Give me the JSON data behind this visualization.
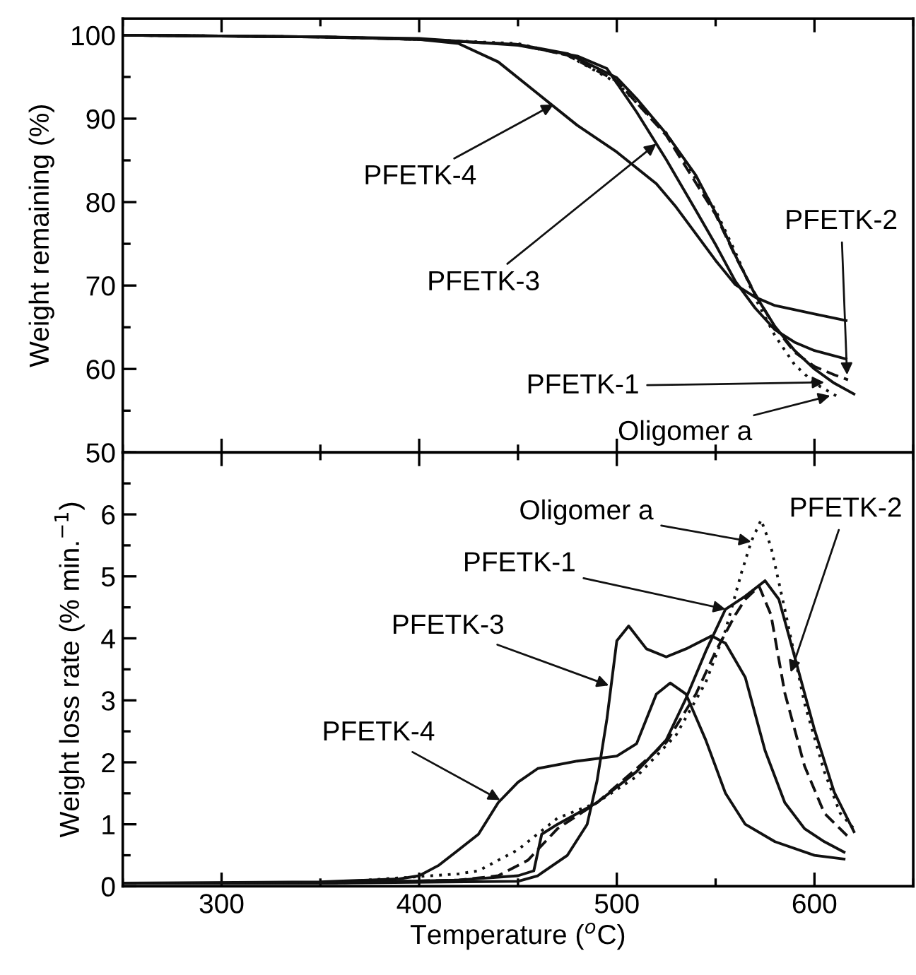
{
  "chart_data": [
    {
      "type": "line",
      "ylabel": "Weight remaining (%)",
      "xlim": [
        250,
        650
      ],
      "xticks": [
        300,
        400,
        500,
        600
      ],
      "ylim": [
        50,
        102
      ],
      "yticks": [
        50,
        60,
        70,
        80,
        90,
        100
      ],
      "tick_labels": "y",
      "grid": false,
      "series": [
        {
          "color": "#111111",
          "line_style": "solid",
          "x": [
            250,
            350,
            400,
            420,
            440,
            460,
            480,
            500,
            520,
            530,
            540,
            550,
            560,
            570,
            580,
            600,
            616
          ],
          "values": [
            100,
            99.8,
            99.5,
            99.0,
            96.8,
            93.0,
            89.2,
            86.0,
            82.2,
            79.4,
            76.2,
            73.0,
            70.1,
            68.6,
            67.6,
            66.6,
            65.8
          ]
        },
        {
          "color": "#111111",
          "line_style": "solid",
          "x": [
            250,
            350,
            400,
            450,
            480,
            495,
            510,
            525,
            540,
            550,
            560,
            570,
            580,
            590,
            600,
            616
          ],
          "values": [
            100,
            99.8,
            99.6,
            98.8,
            97.5,
            96.0,
            90.8,
            85.1,
            79.0,
            74.9,
            70.5,
            67.3,
            64.7,
            63.2,
            62.2,
            61.2
          ]
        },
        {
          "color": "#111111",
          "line_style": "solid",
          "x": [
            250,
            350,
            400,
            450,
            475,
            500,
            510,
            525,
            540,
            550,
            560,
            570,
            580,
            590,
            600,
            610,
            620
          ],
          "values": [
            100,
            99.8,
            99.5,
            98.9,
            97.8,
            94.9,
            92.4,
            88.2,
            83.2,
            78.7,
            73.6,
            68.9,
            65.1,
            62.2,
            60.0,
            58.3,
            57.0
          ]
        },
        {
          "color": "#111111",
          "line_style": "dashed",
          "x": [
            250,
            350,
            400,
            450,
            475,
            500,
            525,
            550,
            560,
            570,
            580,
            590,
            600,
            610,
            617
          ],
          "values": [
            100,
            99.8,
            99.5,
            98.9,
            97.6,
            94.5,
            88.0,
            78.5,
            73.5,
            69.0,
            65.0,
            62.0,
            60.3,
            59.3,
            58.7
          ]
        },
        {
          "color": "#111111",
          "line_style": "dotted",
          "x": [
            250,
            350,
            400,
            450,
            475,
            500,
            525,
            550,
            560,
            570,
            580,
            590,
            600,
            613
          ],
          "values": [
            100,
            99.8,
            99.5,
            99.0,
            97.6,
            94.3,
            88.3,
            79.0,
            74.0,
            68.5,
            64.0,
            60.5,
            58.3,
            56.5
          ]
        }
      ],
      "annotations": [
        {
          "text": "PFETK-4",
          "x": 468,
          "y": 91.7
        },
        {
          "text": "PFETK-3",
          "x": 520,
          "y": 87.0
        },
        {
          "text": "PFETK-2",
          "x": 616.5,
          "y": 59.3
        },
        {
          "text": "PFETK-1",
          "x": 605,
          "y": 58.4
        },
        {
          "text": "Oligomer a",
          "x": 608,
          "y": 56.8
        }
      ]
    },
    {
      "type": "line",
      "xlabel": "Temperature ($^{o}$C)",
      "ylabel": "Weight loss rate (% min.$^{−1}$)",
      "xlim": [
        250,
        650
      ],
      "xticks": [
        300,
        400,
        500,
        600
      ],
      "ylim": [
        0,
        7
      ],
      "yticks": [
        0,
        1,
        2,
        3,
        4,
        5,
        6
      ],
      "grid": false,
      "series": [
        {
          "color": "#111111",
          "line_style": "solid",
          "x": [
            250,
            350,
            390,
            400,
            410,
            420,
            430,
            440,
            450,
            460,
            480,
            500,
            510,
            520,
            527,
            535,
            545,
            555,
            565,
            580,
            600,
            615
          ],
          "values": [
            0.05,
            0.07,
            0.12,
            0.17,
            0.34,
            0.59,
            0.84,
            1.35,
            1.68,
            1.9,
            2.02,
            2.1,
            2.3,
            3.1,
            3.28,
            3.1,
            2.36,
            1.5,
            1.0,
            0.72,
            0.5,
            0.44
          ]
        },
        {
          "color": "#111111",
          "line_style": "solid",
          "x": [
            250,
            350,
            450,
            460,
            475,
            485,
            490,
            495,
            500,
            506,
            515,
            525,
            535,
            548,
            555,
            565,
            575,
            585,
            595,
            605,
            615
          ],
          "values": [
            0.05,
            0.05,
            0.08,
            0.17,
            0.5,
            1.0,
            1.7,
            2.7,
            3.96,
            4.2,
            3.83,
            3.7,
            3.83,
            4.04,
            3.92,
            3.37,
            2.19,
            1.35,
            0.93,
            0.72,
            0.55
          ]
        },
        {
          "color": "#111111",
          "line_style": "solid",
          "x": [
            250,
            350,
            420,
            450,
            458,
            462,
            470,
            490,
            510,
            525,
            535,
            545,
            555,
            565,
            575,
            582,
            590,
            600,
            610,
            620
          ],
          "values": [
            0.05,
            0.05,
            0.1,
            0.17,
            0.25,
            0.84,
            1.0,
            1.35,
            1.85,
            2.36,
            3.03,
            3.79,
            4.47,
            4.68,
            4.93,
            4.63,
            3.7,
            2.53,
            1.52,
            0.88
          ]
        },
        {
          "color": "#111111",
          "line_style": "dashed",
          "x": [
            250,
            350,
            420,
            440,
            455,
            470,
            490,
            510,
            525,
            540,
            550,
            560,
            565,
            572,
            578,
            585,
            595,
            605,
            617
          ],
          "values": [
            0.05,
            0.05,
            0.1,
            0.17,
            0.42,
            0.93,
            1.35,
            1.9,
            2.32,
            3.1,
            3.79,
            4.38,
            4.63,
            4.84,
            4.38,
            3.12,
            1.94,
            1.18,
            0.8
          ]
        },
        {
          "color": "#111111",
          "line_style": "dotted",
          "x": [
            250,
            350,
            420,
            430,
            450,
            470,
            490,
            510,
            530,
            545,
            555,
            563,
            568,
            573,
            578,
            585,
            595,
            605,
            613,
            620
          ],
          "values": [
            0.05,
            0.05,
            0.2,
            0.25,
            0.59,
            1.1,
            1.35,
            1.77,
            2.44,
            3.29,
            4.13,
            5.05,
            5.56,
            5.91,
            5.48,
            4.47,
            2.95,
            1.85,
            1.18,
            0.93
          ]
        }
      ],
      "annotations": [
        {
          "text": "Oligomer a",
          "x": 568,
          "y": 5.56
        },
        {
          "text": "PFETK-2",
          "x": 588,
          "y": 3.45
        },
        {
          "text": "PFETK-1",
          "x": 555,
          "y": 4.47
        },
        {
          "text": "PFETK-3",
          "x": 496,
          "y": 3.24
        },
        {
          "text": "PFETK-4",
          "x": 441,
          "y": 1.39
        }
      ]
    }
  ]
}
